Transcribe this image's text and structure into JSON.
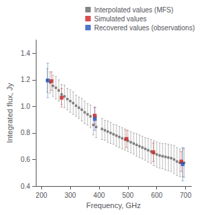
{
  "chart_data": {
    "type": "scatter",
    "xlabel": "Frequency, GHz",
    "ylabel": "Integrated flux, Jy",
    "xlim": [
      180,
      720
    ],
    "ylim": [
      0.4,
      1.5
    ],
    "xticks": [
      200,
      300,
      400,
      500,
      600,
      700
    ],
    "yticks": [
      0.4,
      0.6,
      0.8,
      {
        "value": 1,
        "label": "1.0"
      },
      1.2,
      1.4
    ],
    "grid": false,
    "legend": "upper right",
    "marker": "square",
    "series": [
      {
        "name": "Interpolated values (MFS)",
        "color": "#666666",
        "x": [
          220,
          230,
          240,
          250,
          260,
          270,
          280,
          290,
          300,
          310,
          320,
          330,
          340,
          350,
          360,
          370,
          380,
          390,
          410,
          420,
          430,
          440,
          450,
          460,
          470,
          480,
          490,
          500,
          510,
          520,
          530,
          540,
          550,
          560,
          570,
          580,
          590,
          600,
          610,
          620,
          630,
          640,
          650,
          660,
          670,
          680,
          690,
          695
        ],
        "values": [
          1.195,
          1.18,
          1.155,
          1.14,
          1.12,
          1.09,
          1.075,
          1.055,
          1.04,
          1.025,
          1.005,
          0.99,
          0.975,
          0.955,
          0.94,
          0.925,
          0.86,
          0.845,
          0.83,
          0.82,
          0.81,
          0.8,
          0.79,
          0.78,
          0.77,
          0.76,
          0.75,
          0.74,
          0.73,
          0.72,
          0.71,
          0.7,
          0.69,
          0.68,
          0.67,
          0.66,
          0.648,
          0.638,
          0.63,
          0.625,
          0.62,
          0.615,
          0.61,
          0.6,
          0.585,
          0.575,
          0.575,
          0.575
        ],
        "errors": [
          0.09,
          0.08,
          0.08,
          0.085,
          0.08,
          0.075,
          0.085,
          0.08,
          0.085,
          0.085,
          0.08,
          0.08,
          0.085,
          0.085,
          0.08,
          0.085,
          0.075,
          0.08,
          0.08,
          0.075,
          0.08,
          0.08,
          0.075,
          0.08,
          0.08,
          0.08,
          0.08,
          0.08,
          0.08,
          0.08,
          0.085,
          0.085,
          0.085,
          0.085,
          0.09,
          0.09,
          0.095,
          0.095,
          0.095,
          0.095,
          0.1,
          0.1,
          0.1,
          0.105,
          0.105,
          0.105,
          0.105,
          0.11
        ]
      },
      {
        "name": "Simulated values",
        "color": "#cc2222",
        "x": [
          235,
          270,
          385,
          495,
          588,
          685
        ],
        "values": [
          1.19,
          1.065,
          0.93,
          0.755,
          0.655,
          0.585
        ],
        "errors": [
          0.07,
          0.07,
          0.065,
          0.065,
          0.07,
          0.075
        ]
      },
      {
        "name": "Recovered values (observations)",
        "color": "#2255bb",
        "x": [
          222,
          385,
          690
        ],
        "values": [
          1.195,
          0.905,
          0.565
        ],
        "errors": [
          0.13,
          0.085,
          0.125
        ]
      }
    ]
  }
}
